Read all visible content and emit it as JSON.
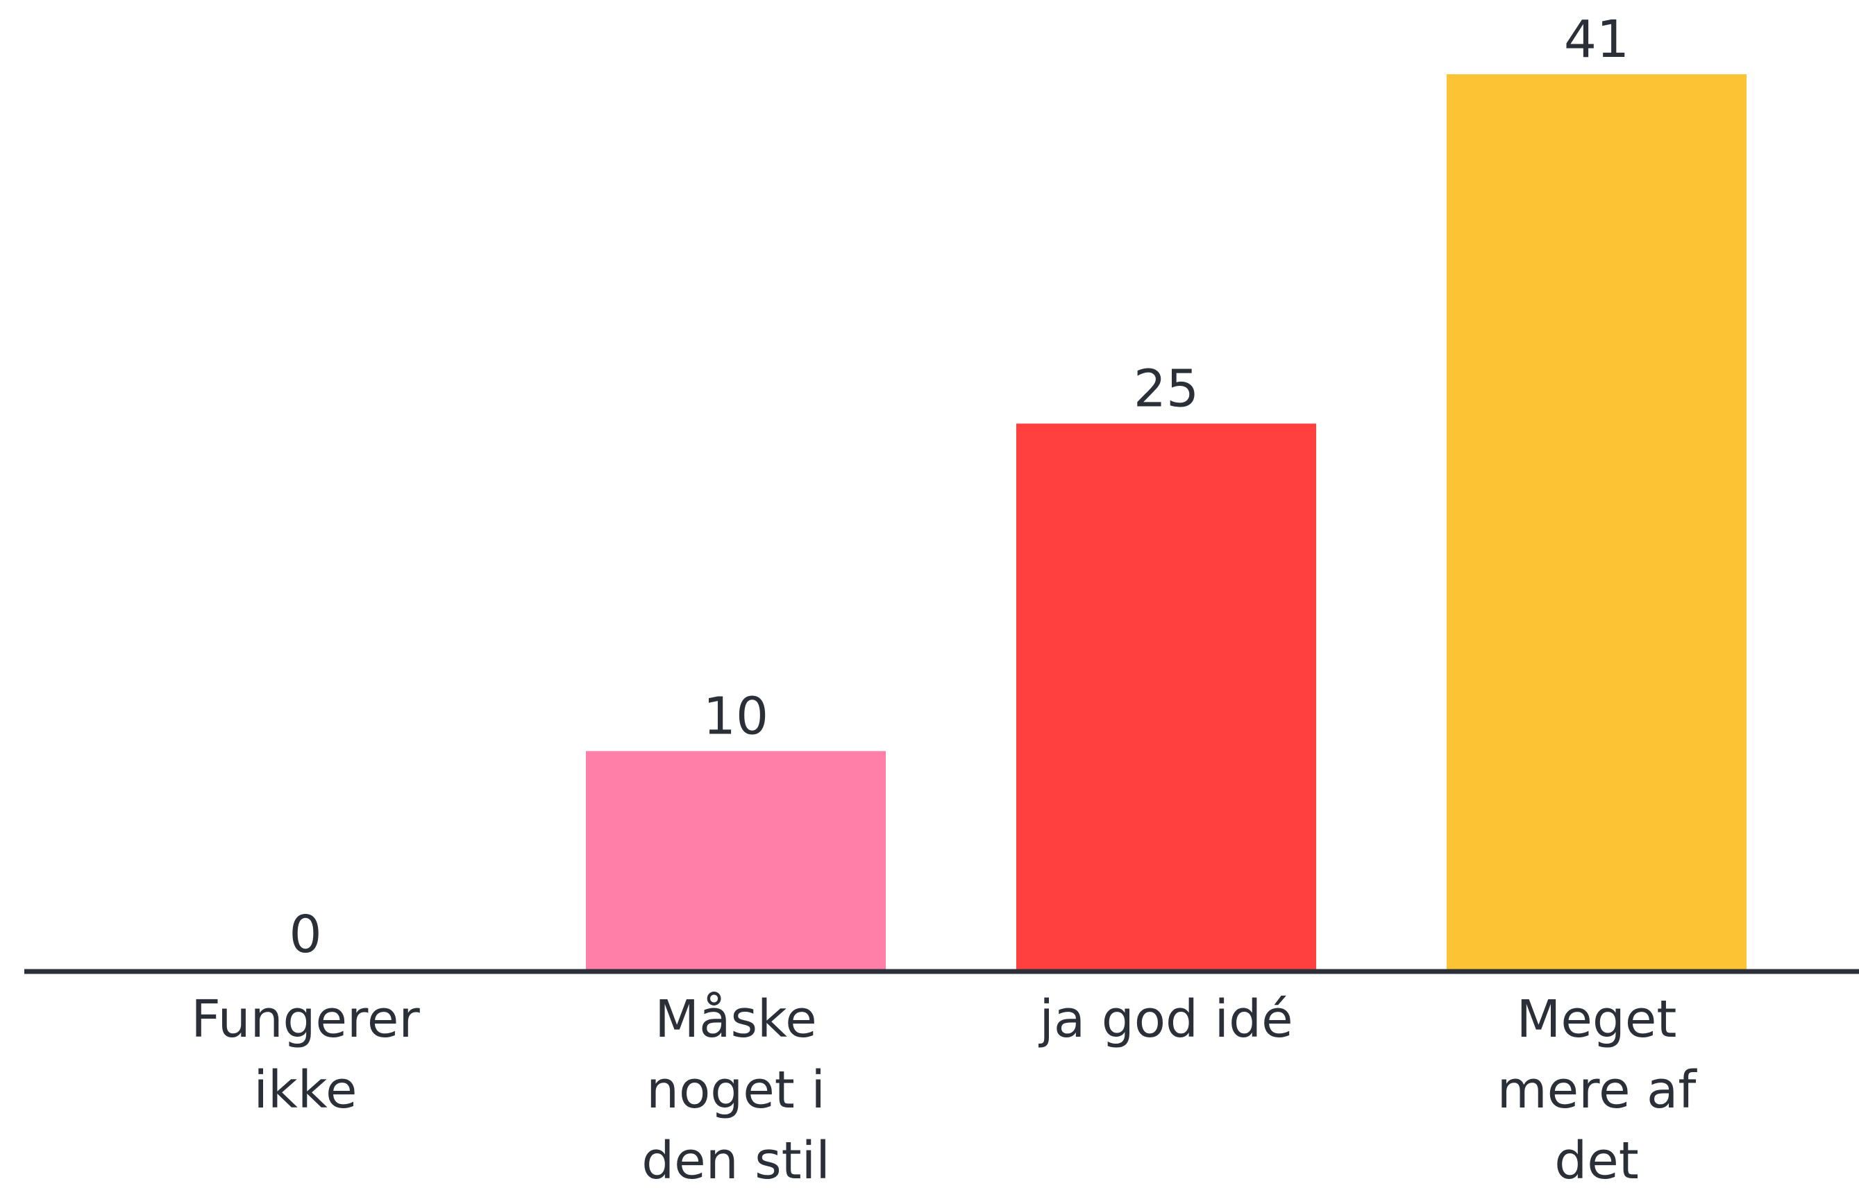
{
  "chart_data": {
    "type": "bar",
    "categories": [
      [
        "Fungerer",
        "ikke"
      ],
      [
        "Måske",
        "noget i",
        "den stil"
      ],
      [
        "ja god idé"
      ],
      [
        "Meget",
        "mere af",
        "det"
      ]
    ],
    "values": [
      0,
      10,
      25,
      41
    ],
    "value_labels": [
      "0",
      "10",
      "25",
      "41"
    ],
    "colors": [
      "#ff7fa8",
      "#ff7fa8",
      "#ff403e",
      "#fcc335"
    ],
    "axis_color": "#2b2f38",
    "text_color": "#2b2f38",
    "ylim": [
      0,
      41
    ],
    "grid": false,
    "title": "",
    "xlabel": "",
    "ylabel": ""
  }
}
